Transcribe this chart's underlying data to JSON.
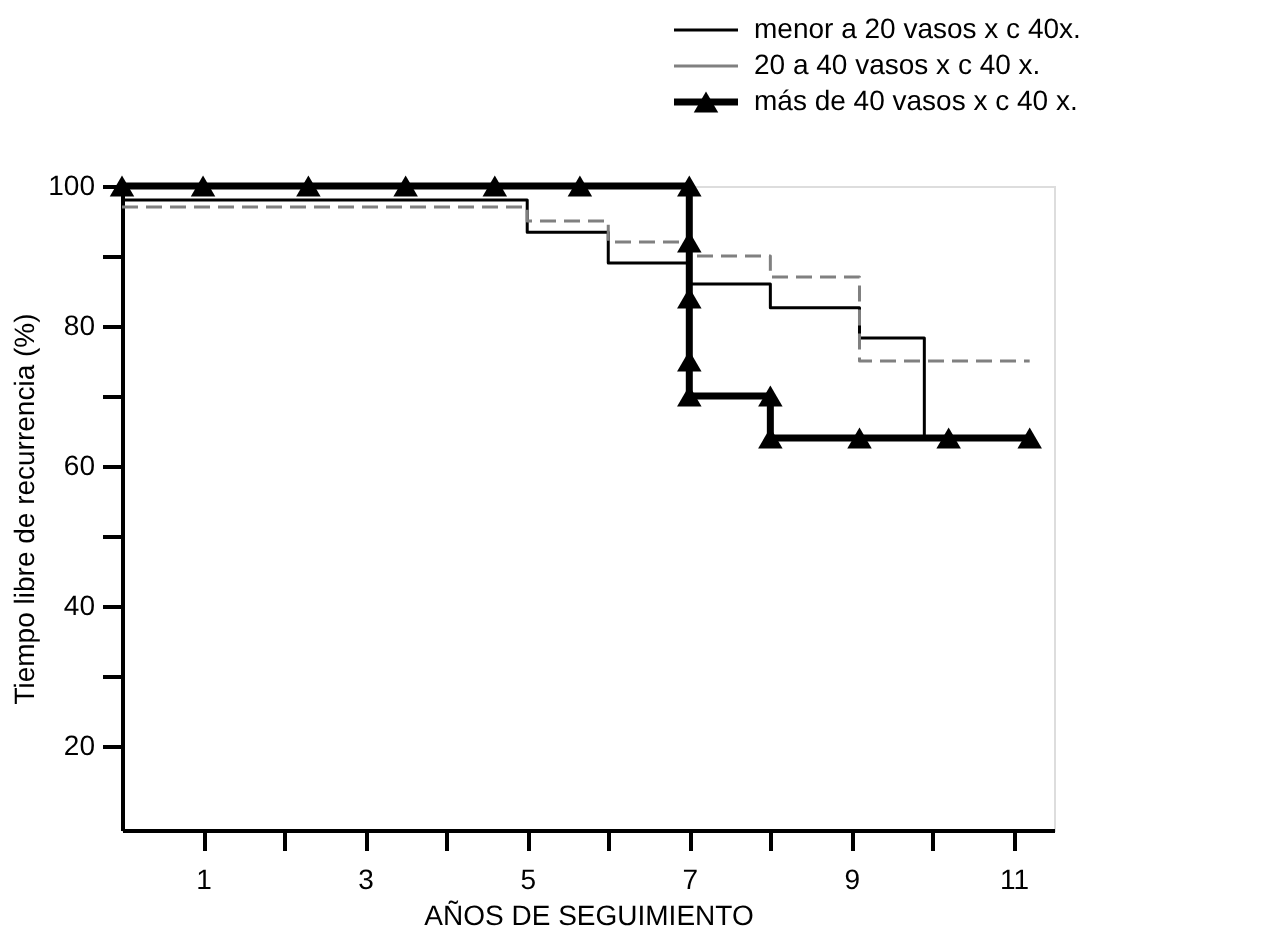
{
  "chart_data": {
    "type": "step",
    "xlabel": "AÑOS DE SEGUIMIENTO",
    "ylabel": "Tiempo libre de recurrencia (%)",
    "xlim": [
      0,
      11.5
    ],
    "ylim": [
      8,
      100
    ],
    "xticks": [
      1,
      {
        "value": 2,
        "label": null
      },
      3,
      {
        "value": 4,
        "label": null
      },
      5,
      {
        "value": 6,
        "label": null
      },
      7,
      {
        "value": 8,
        "label": null
      },
      9,
      {
        "value": 10,
        "label": null
      },
      11
    ],
    "yticks": [
      20,
      {
        "value": 30,
        "label": null
      },
      40,
      {
        "value": 50,
        "label": null
      },
      60,
      {
        "value": 70,
        "label": null
      },
      80,
      {
        "value": 90,
        "label": null
      },
      100
    ],
    "grid": false,
    "legend": "top right",
    "series": [
      {
        "name": "menor a 20 vasos x c 40x.",
        "color": "#000000",
        "line_style": "solid",
        "marker": "none",
        "x": [
          0,
          5,
          6,
          7,
          8,
          9.1,
          9.9,
          9.9
        ],
        "values": [
          98,
          93.4,
          89,
          86,
          82.6,
          78.3,
          78.3,
          64
        ]
      },
      {
        "name": "20 a 40 vasos x c 40 x.",
        "color": "#808080",
        "line_style": "dashed",
        "marker": "none",
        "x": [
          0,
          5,
          6,
          7,
          8,
          9.1,
          11.2
        ],
        "values": [
          97,
          95,
          92,
          90,
          87,
          75,
          75
        ]
      },
      {
        "name": "más de 40 vasos x c 40 x.",
        "color": "#000000",
        "line_style": "solid",
        "marker": "triangle",
        "x": [
          0,
          1,
          2.3,
          3.5,
          4.6,
          5.65,
          7,
          7,
          7,
          7,
          7,
          8,
          8,
          9.1,
          10.2,
          11.2
        ],
        "values": [
          100,
          100,
          100,
          100,
          100,
          100,
          100,
          92,
          84,
          75,
          70,
          70,
          64,
          64,
          64,
          64
        ]
      }
    ]
  }
}
